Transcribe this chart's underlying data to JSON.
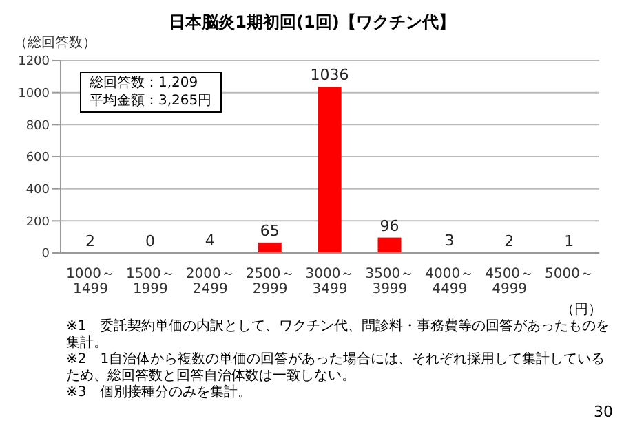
{
  "chart_data": {
    "type": "bar",
    "title": "日本脳炎1期初回(1回)【ワクチン代】",
    "xlabel": "（円）",
    "ylabel": "（総回答数）",
    "categories": [
      "1000～1499",
      "1500～1999",
      "2000～2499",
      "2500～2999",
      "3000～3499",
      "3500～3999",
      "4000～4499",
      "4500～4999",
      "5000～"
    ],
    "values": [
      2,
      0,
      4,
      65,
      1036,
      96,
      3,
      2,
      1
    ],
    "color": "#ff0000",
    "ylim": [
      0,
      1200
    ],
    "yticks": [
      0,
      200,
      400,
      600,
      800,
      1000,
      1200
    ],
    "grid": "y",
    "data_labels": true,
    "annotations": [
      "総回答数：1,209",
      "平均金額：3,265円",
      "※1　委託契約単価の内訳として、ワクチン代、問診料・事務費等の回答があったものを集計。",
      "※2　1自治体から複数の単価の回答があった場合には、それぞれ採用して集計しているため、総回答数と回答自治体数は一致しない。",
      "※3　個別接種分のみを集計。",
      "30"
    ]
  }
}
